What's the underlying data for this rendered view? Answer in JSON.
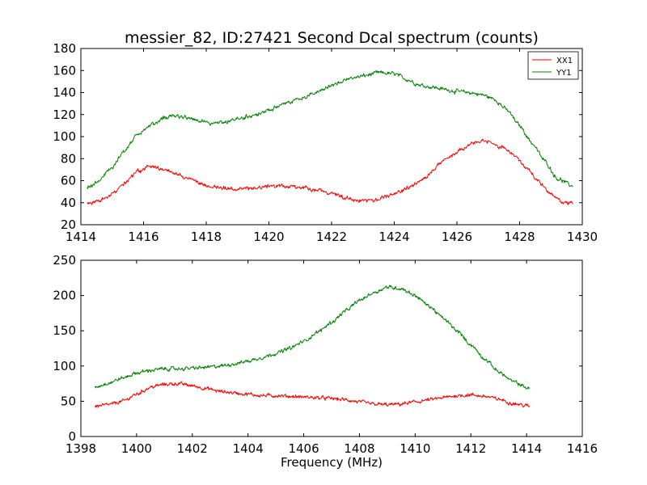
{
  "chart_data": [
    {
      "type": "line",
      "title": "messier_82, ID:27421 Second Dcal spectrum (counts)",
      "xlabel": "",
      "ylabel": "",
      "xlim": [
        1414,
        1430
      ],
      "ylim": [
        20,
        180
      ],
      "xticks": [
        1414,
        1416,
        1418,
        1420,
        1422,
        1424,
        1426,
        1428,
        1430
      ],
      "yticks": [
        20,
        40,
        60,
        80,
        100,
        120,
        140,
        160,
        180
      ],
      "grid": false,
      "legend": {
        "placement": "top-right",
        "entries": [
          "XX1",
          "YY1"
        ]
      },
      "x_range": [
        1414.2,
        1429.7
      ],
      "noise": 2.5,
      "series": [
        {
          "name": "XX1",
          "color": "#ff0000",
          "points": [
            [
              1414.2,
              39
            ],
            [
              1414.6,
              42
            ],
            [
              1415.0,
              48
            ],
            [
              1415.4,
              58
            ],
            [
              1415.8,
              68
            ],
            [
              1416.2,
              73
            ],
            [
              1416.6,
              71
            ],
            [
              1417.0,
              66
            ],
            [
              1417.4,
              62
            ],
            [
              1417.8,
              57
            ],
            [
              1418.2,
              55
            ],
            [
              1418.6,
              53
            ],
            [
              1419.0,
              52
            ],
            [
              1419.5,
              53
            ],
            [
              1420.0,
              55
            ],
            [
              1420.5,
              55
            ],
            [
              1421.0,
              54
            ],
            [
              1421.5,
              52
            ],
            [
              1422.0,
              49
            ],
            [
              1422.5,
              44
            ],
            [
              1423.0,
              42
            ],
            [
              1423.4,
              42
            ],
            [
              1423.8,
              46
            ],
            [
              1424.2,
              50
            ],
            [
              1424.6,
              56
            ],
            [
              1425.0,
              64
            ],
            [
              1425.4,
              74
            ],
            [
              1425.8,
              82
            ],
            [
              1426.2,
              90
            ],
            [
              1426.6,
              95
            ],
            [
              1427.0,
              95
            ],
            [
              1427.4,
              91
            ],
            [
              1427.8,
              83
            ],
            [
              1428.2,
              72
            ],
            [
              1428.6,
              60
            ],
            [
              1429.0,
              48
            ],
            [
              1429.4,
              40
            ],
            [
              1429.7,
              39
            ]
          ]
        },
        {
          "name": "YY1",
          "color": "#008000",
          "points": [
            [
              1414.2,
              54
            ],
            [
              1414.6,
              60
            ],
            [
              1415.0,
              72
            ],
            [
              1415.4,
              88
            ],
            [
              1415.8,
              102
            ],
            [
              1416.2,
              110
            ],
            [
              1416.6,
              116
            ],
            [
              1417.0,
              119
            ],
            [
              1417.4,
              117
            ],
            [
              1417.8,
              114
            ],
            [
              1418.2,
              112
            ],
            [
              1418.6,
              113
            ],
            [
              1419.0,
              116
            ],
            [
              1419.5,
              119
            ],
            [
              1420.0,
              124
            ],
            [
              1420.5,
              130
            ],
            [
              1421.0,
              135
            ],
            [
              1421.5,
              140
            ],
            [
              1422.0,
              146
            ],
            [
              1422.5,
              152
            ],
            [
              1423.0,
              155
            ],
            [
              1423.5,
              158
            ],
            [
              1424.0,
              157
            ],
            [
              1424.4,
              152
            ],
            [
              1424.8,
              147
            ],
            [
              1425.2,
              145
            ],
            [
              1425.6,
              143
            ],
            [
              1426.0,
              141
            ],
            [
              1426.4,
              140
            ],
            [
              1426.8,
              138
            ],
            [
              1427.2,
              134
            ],
            [
              1427.6,
              124
            ],
            [
              1428.0,
              110
            ],
            [
              1428.4,
              94
            ],
            [
              1428.8,
              78
            ],
            [
              1429.2,
              62
            ],
            [
              1429.7,
              55
            ]
          ]
        }
      ]
    },
    {
      "type": "line",
      "title": "",
      "xlabel": "Frequency (MHz)",
      "ylabel": "",
      "xlim": [
        1398,
        1416
      ],
      "ylim": [
        0,
        250
      ],
      "xticks": [
        1398,
        1400,
        1402,
        1404,
        1406,
        1408,
        1410,
        1412,
        1414,
        1416
      ],
      "yticks": [
        0,
        50,
        100,
        150,
        200,
        250
      ],
      "grid": false,
      "x_range": [
        1398.5,
        1414.1
      ],
      "noise": 3.5,
      "series": [
        {
          "name": "XX1",
          "color": "#ff0000",
          "points": [
            [
              1398.5,
              43
            ],
            [
              1399.0,
              45
            ],
            [
              1399.5,
              50
            ],
            [
              1400.0,
              60
            ],
            [
              1400.5,
              70
            ],
            [
              1401.0,
              74
            ],
            [
              1401.5,
              75
            ],
            [
              1402.0,
              72
            ],
            [
              1402.5,
              68
            ],
            [
              1403.0,
              64
            ],
            [
              1403.5,
              62
            ],
            [
              1404.0,
              60
            ],
            [
              1404.5,
              58
            ],
            [
              1405.0,
              58
            ],
            [
              1405.5,
              57
            ],
            [
              1406.0,
              56
            ],
            [
              1406.5,
              55
            ],
            [
              1407.0,
              54
            ],
            [
              1407.5,
              52
            ],
            [
              1408.0,
              49
            ],
            [
              1408.5,
              46
            ],
            [
              1409.0,
              45
            ],
            [
              1409.5,
              46
            ],
            [
              1410.0,
              49
            ],
            [
              1410.5,
              52
            ],
            [
              1411.0,
              55
            ],
            [
              1411.5,
              58
            ],
            [
              1412.0,
              59
            ],
            [
              1412.5,
              57
            ],
            [
              1413.0,
              53
            ],
            [
              1413.5,
              47
            ],
            [
              1414.1,
              43
            ]
          ]
        },
        {
          "name": "YY1",
          "color": "#008000",
          "points": [
            [
              1398.5,
              70
            ],
            [
              1399.0,
              76
            ],
            [
              1399.5,
              83
            ],
            [
              1400.0,
              90
            ],
            [
              1400.5,
              94
            ],
            [
              1401.0,
              96
            ],
            [
              1401.5,
              96
            ],
            [
              1402.0,
              97
            ],
            [
              1402.5,
              98
            ],
            [
              1403.0,
              100
            ],
            [
              1403.5,
              103
            ],
            [
              1404.0,
              107
            ],
            [
              1404.5,
              112
            ],
            [
              1405.0,
              118
            ],
            [
              1405.5,
              125
            ],
            [
              1406.0,
              135
            ],
            [
              1406.5,
              148
            ],
            [
              1407.0,
              162
            ],
            [
              1407.5,
              178
            ],
            [
              1408.0,
              193
            ],
            [
              1408.5,
              204
            ],
            [
              1409.0,
              212
            ],
            [
              1409.5,
              210
            ],
            [
              1410.0,
              200
            ],
            [
              1410.5,
              185
            ],
            [
              1411.0,
              168
            ],
            [
              1411.5,
              150
            ],
            [
              1412.0,
              130
            ],
            [
              1412.5,
              110
            ],
            [
              1413.0,
              92
            ],
            [
              1413.5,
              78
            ],
            [
              1414.1,
              68
            ]
          ]
        }
      ]
    }
  ]
}
